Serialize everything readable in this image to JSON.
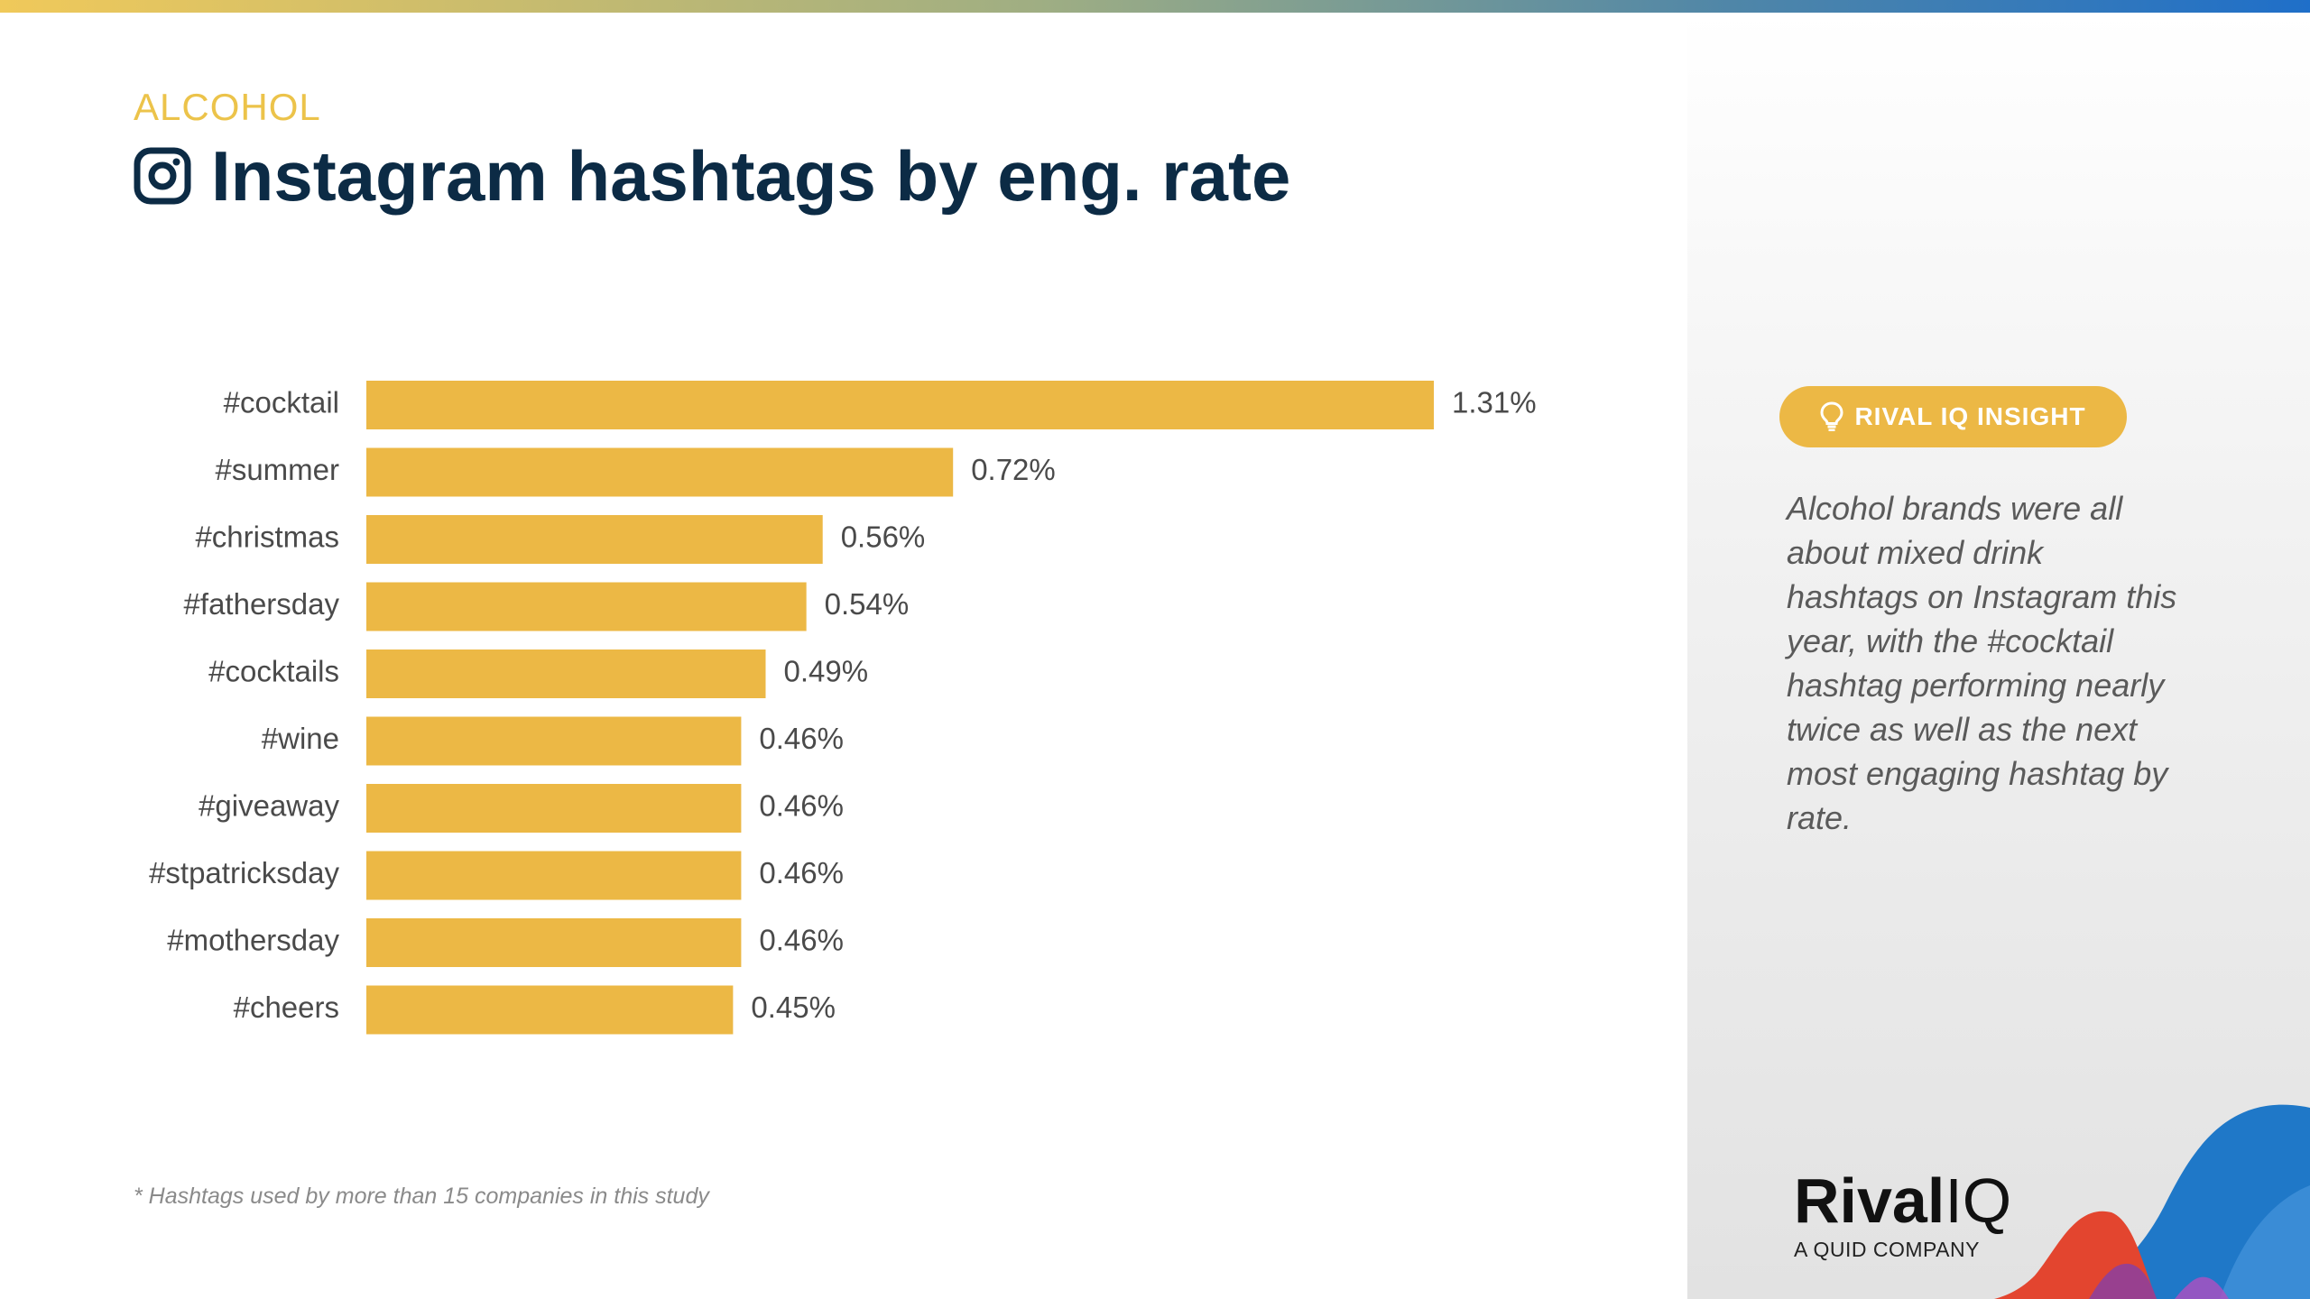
{
  "header": {
    "category": "ALCOHOL",
    "title": "Instagram hashtags by eng. rate"
  },
  "chart_data": {
    "type": "bar",
    "orientation": "horizontal",
    "categories": [
      "#cocktail",
      "#summer",
      "#christmas",
      "#fathersday",
      "#cocktails",
      "#wine",
      "#giveaway",
      "#stpatricksday",
      "#mothersday",
      "#cheers"
    ],
    "values": [
      1.31,
      0.72,
      0.56,
      0.54,
      0.49,
      0.46,
      0.46,
      0.46,
      0.46,
      0.45
    ],
    "value_labels": [
      "1.31%",
      "0.72%",
      "0.56%",
      "0.54%",
      "0.49%",
      "0.46%",
      "0.46%",
      "0.46%",
      "0.46%",
      "0.45%"
    ],
    "xlim": [
      0,
      1.31
    ],
    "bar_color": "#ecb845",
    "grid": false
  },
  "footnote": "* Hashtags used by more than 15 companies in this study",
  "insight": {
    "badge_label": "RIVAL IQ INSIGHT",
    "text": "Alcohol brands were all about mixed drink hashtags on Instagram this year, with the #cocktail hashtag performing nearly twice as well as the next most engaging hashtag by rate."
  },
  "logo": {
    "rival": "Rival",
    "iq": "IQ",
    "subtitle": "A QUID COMPANY"
  },
  "colors": {
    "accent": "#ecb845",
    "title": "#0c2b45",
    "category": "#ecc34a"
  }
}
